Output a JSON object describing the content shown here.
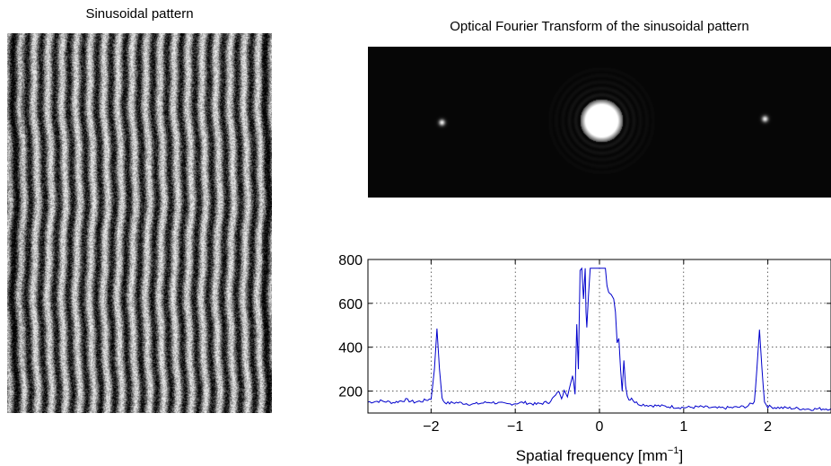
{
  "left_panel": {
    "title": "Sinusoidal pattern"
  },
  "transform_panel": {
    "title": "Optical Fourier Transform of the sinusoidal pattern"
  },
  "chart_data": {
    "type": "line",
    "title": "",
    "xlabel": "Spatial frequency [mm",
    "xlabel_sup": "−1",
    "xlabel_close": "]",
    "ylabel": "",
    "xlim": [
      -2.75,
      2.75
    ],
    "ylim": [
      100,
      800
    ],
    "x_ticks": [
      -2,
      -1,
      0,
      1,
      2
    ],
    "x_tick_labels": [
      "−2",
      "−1",
      "0",
      "1",
      "2"
    ],
    "y_ticks": [
      200,
      400,
      600,
      800
    ],
    "y_tick_labels": [
      "200",
      "400",
      "600",
      "800"
    ],
    "grid": true,
    "line_color": "#0000cc",
    "series": [
      {
        "x": [
          -2.75,
          -2.6,
          -2.45,
          -2.3,
          -2.2,
          -2.1,
          -2.0,
          -1.96,
          -1.93,
          -1.9,
          -1.87,
          -1.84,
          -1.8,
          -1.7,
          -1.5,
          -1.3,
          -1.1,
          -0.9,
          -0.75,
          -0.6,
          -0.52,
          -0.48,
          -0.45,
          -0.42,
          -0.38,
          -0.35,
          -0.32,
          -0.29,
          -0.27,
          -0.25,
          -0.23,
          -0.21,
          -0.19,
          -0.17,
          -0.16,
          -0.15,
          -0.13,
          -0.11,
          -0.08,
          0.0,
          0.07,
          0.09,
          0.11,
          0.14,
          0.17,
          0.19,
          0.21,
          0.23,
          0.25,
          0.27,
          0.29,
          0.31,
          0.33,
          0.35,
          0.38,
          0.42,
          0.48,
          0.6,
          0.8,
          1.0,
          1.2,
          1.4,
          1.6,
          1.75,
          1.84,
          1.87,
          1.9,
          1.93,
          1.96,
          2.0,
          2.1,
          2.3,
          2.5,
          2.75
        ],
        "y": [
          150,
          155,
          148,
          160,
          150,
          155,
          165,
          300,
          485,
          300,
          165,
          150,
          145,
          148,
          140,
          150,
          140,
          148,
          140,
          150,
          180,
          200,
          160,
          210,
          180,
          220,
          270,
          190,
          505,
          300,
          750,
          760,
          620,
          760,
          560,
          490,
          640,
          760,
          760,
          760,
          760,
          680,
          650,
          640,
          620,
          560,
          420,
          440,
          300,
          200,
          340,
          230,
          180,
          160,
          170,
          150,
          140,
          135,
          130,
          125,
          128,
          122,
          125,
          130,
          150,
          300,
          480,
          300,
          150,
          130,
          125,
          122,
          118,
          120
        ]
      }
    ]
  }
}
